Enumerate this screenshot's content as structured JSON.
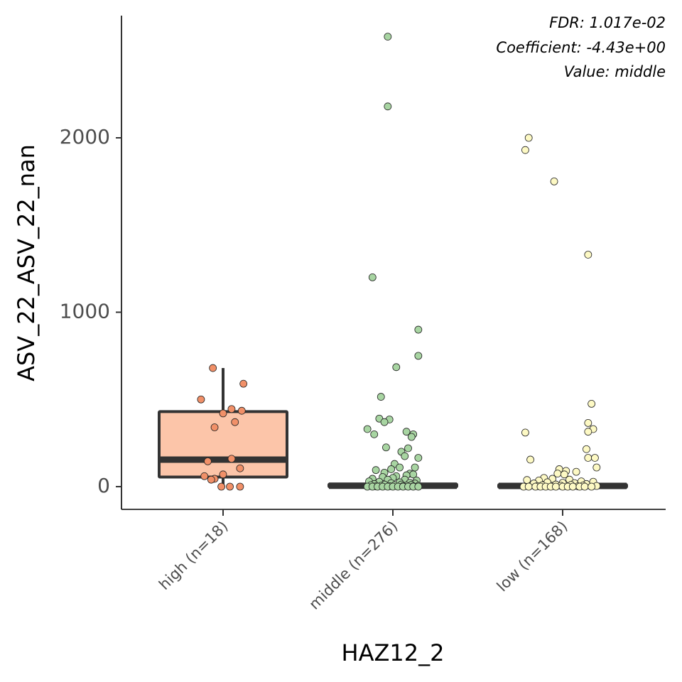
{
  "chart_data": {
    "type": "box",
    "title": "",
    "xlabel": "HAZ12_2",
    "ylabel": "ASV_22_ASV_22_nan",
    "ylim": [
      -130,
      2660
    ],
    "yticks": [
      0,
      1000,
      2000
    ],
    "grid": false,
    "annotations": [
      "FDR: 1.017e-02",
      "Coefficient: -4.43e+00",
      "Value: middle"
    ],
    "categories": [
      "high (n=18)",
      "middle (n=276)",
      "low (n=168)"
    ],
    "colors": {
      "high": "#fcc5a9",
      "middle": "#a8d5a2",
      "low": "#fdf9c4",
      "high_point": "#f19068"
    },
    "boxes": [
      {
        "q1": 55,
        "median": 155,
        "q3": 430,
        "whisker_low": 0,
        "whisker_high": 680
      },
      {
        "q1": 0,
        "median": 5,
        "q3": 15,
        "whisker_low": 0,
        "whisker_high": 30
      },
      {
        "q1": 0,
        "median": 4,
        "q3": 12,
        "whisker_low": 0,
        "whisker_high": 25
      }
    ],
    "points": [
      [
        [
          0.94,
          680
        ],
        [
          1.12,
          590
        ],
        [
          0.87,
          500
        ],
        [
          1.05,
          445
        ],
        [
          1.11,
          435
        ],
        [
          1.0,
          420
        ],
        [
          1.07,
          370
        ],
        [
          0.95,
          340
        ],
        [
          1.05,
          160
        ],
        [
          0.91,
          145
        ],
        [
          1.1,
          105
        ],
        [
          0.89,
          60
        ],
        [
          1.0,
          70
        ],
        [
          0.95,
          45
        ],
        [
          0.93,
          40
        ],
        [
          0.99,
          0
        ],
        [
          1.04,
          0
        ],
        [
          1.1,
          0
        ]
      ],
      [
        [
          1.97,
          2580
        ],
        [
          1.97,
          2180
        ],
        [
          1.88,
          1200
        ],
        [
          2.15,
          900
        ],
        [
          2.15,
          750
        ],
        [
          2.02,
          685
        ],
        [
          1.93,
          515
        ],
        [
          1.92,
          390
        ],
        [
          1.98,
          385
        ],
        [
          1.95,
          370
        ],
        [
          1.85,
          330
        ],
        [
          1.89,
          300
        ],
        [
          2.08,
          315
        ],
        [
          2.12,
          300
        ],
        [
          2.11,
          285
        ],
        [
          1.96,
          225
        ],
        [
          2.05,
          200
        ],
        [
          2.09,
          220
        ],
        [
          2.07,
          175
        ],
        [
          2.15,
          165
        ],
        [
          2.01,
          130
        ],
        [
          2.13,
          110
        ],
        [
          1.99,
          100
        ],
        [
          2.04,
          110
        ],
        [
          1.9,
          95
        ],
        [
          1.95,
          80
        ],
        [
          2.1,
          75
        ],
        [
          2.12,
          70
        ],
        [
          2.08,
          65
        ],
        [
          2.02,
          60
        ],
        [
          1.94,
          55
        ],
        [
          2.0,
          50
        ],
        [
          1.88,
          45
        ],
        [
          1.97,
          40
        ],
        [
          2.07,
          40
        ],
        [
          2.14,
          35
        ],
        [
          1.86,
          30
        ],
        [
          1.92,
          28
        ],
        [
          2.04,
          25
        ],
        [
          2.1,
          22
        ],
        [
          1.99,
          20
        ],
        [
          2.13,
          18
        ],
        [
          1.89,
          15
        ],
        [
          1.95,
          12
        ],
        [
          2.05,
          12
        ],
        [
          2.11,
          10
        ],
        [
          1.87,
          8
        ],
        [
          2.01,
          8
        ],
        [
          2.08,
          6
        ],
        [
          1.93,
          5
        ],
        [
          2.15,
          5
        ],
        [
          1.98,
          3
        ],
        [
          2.06,
          3
        ],
        [
          1.9,
          2
        ],
        [
          2.12,
          2
        ],
        [
          1.85,
          0
        ],
        [
          1.88,
          0
        ],
        [
          1.91,
          0
        ],
        [
          1.94,
          0
        ],
        [
          1.97,
          0
        ],
        [
          2.0,
          0
        ],
        [
          2.03,
          0
        ],
        [
          2.06,
          0
        ],
        [
          2.09,
          0
        ],
        [
          2.12,
          0
        ],
        [
          2.15,
          0
        ]
      ],
      [
        [
          2.8,
          2000
        ],
        [
          2.78,
          1930
        ],
        [
          2.95,
          1750
        ],
        [
          3.15,
          1330
        ],
        [
          3.17,
          475
        ],
        [
          3.15,
          365
        ],
        [
          3.18,
          330
        ],
        [
          3.15,
          315
        ],
        [
          2.78,
          310
        ],
        [
          3.14,
          215
        ],
        [
          3.15,
          165
        ],
        [
          3.19,
          165
        ],
        [
          2.81,
          155
        ],
        [
          3.2,
          110
        ],
        [
          2.98,
          100
        ],
        [
          3.02,
          90
        ],
        [
          3.08,
          85
        ],
        [
          2.97,
          75
        ],
        [
          3.01,
          70
        ],
        [
          2.89,
          50
        ],
        [
          2.94,
          45
        ],
        [
          3.04,
          40
        ],
        [
          2.79,
          38
        ],
        [
          2.86,
          35
        ],
        [
          3.11,
          30
        ],
        [
          3.18,
          28
        ],
        [
          2.91,
          25
        ],
        [
          3.0,
          22
        ],
        [
          3.07,
          20
        ],
        [
          2.83,
          18
        ],
        [
          3.14,
          15
        ],
        [
          2.96,
          12
        ],
        [
          3.05,
          10
        ],
        [
          2.88,
          8
        ],
        [
          3.12,
          6
        ],
        [
          2.99,
          5
        ],
        [
          3.2,
          4
        ],
        [
          2.85,
          3
        ],
        [
          3.09,
          2
        ],
        [
          2.77,
          0
        ],
        [
          2.8,
          0
        ],
        [
          2.84,
          0
        ],
        [
          2.87,
          0
        ],
        [
          2.9,
          0
        ],
        [
          2.93,
          0
        ],
        [
          2.96,
          0
        ],
        [
          3.0,
          0
        ],
        [
          3.03,
          0
        ],
        [
          3.06,
          0
        ],
        [
          3.1,
          0
        ],
        [
          3.13,
          0
        ],
        [
          3.17,
          0
        ]
      ]
    ]
  }
}
